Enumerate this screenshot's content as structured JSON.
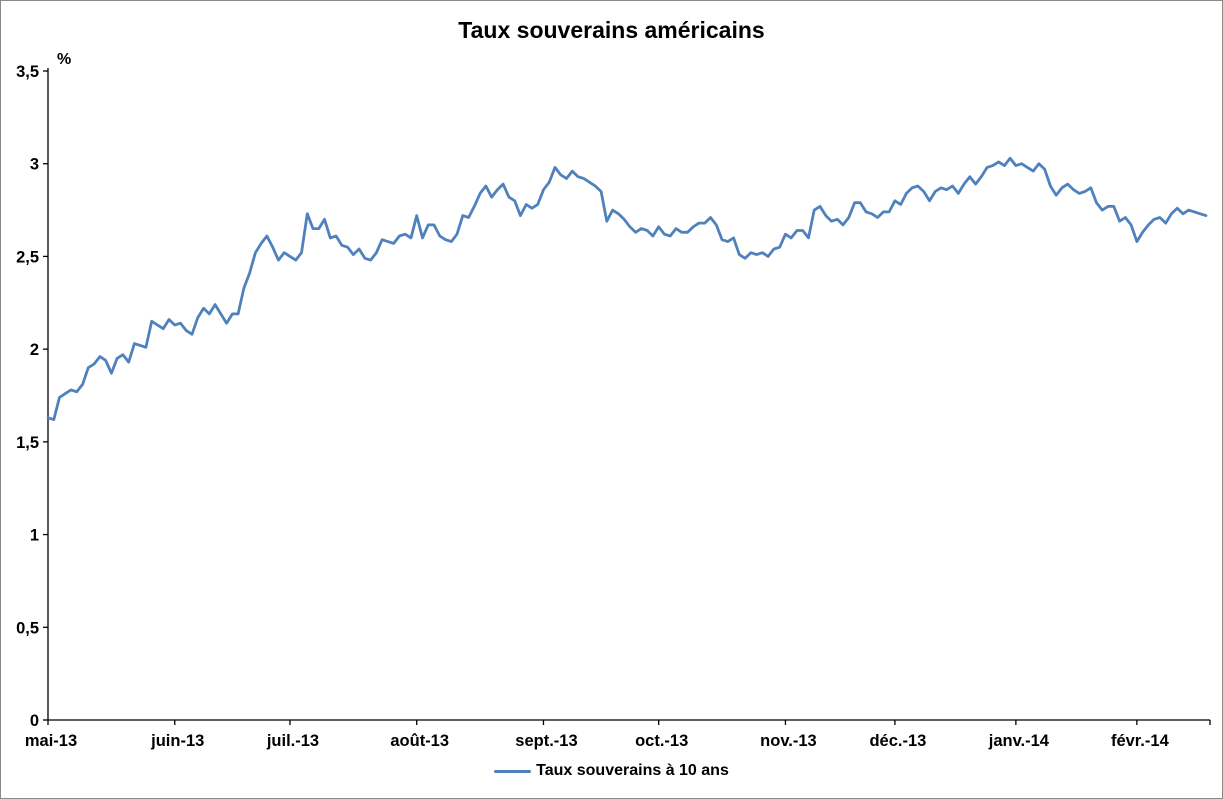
{
  "chart_data": {
    "type": "line",
    "title": "Taux souverains américains",
    "unit": "%",
    "grid": false,
    "legend_position": "bottom",
    "ylim": [
      0,
      3.5
    ],
    "y_ticks": [
      {
        "label": "0",
        "value": 0
      },
      {
        "label": "0,5",
        "value": 0.5
      },
      {
        "label": "1",
        "value": 1
      },
      {
        "label": "1,5",
        "value": 1.5
      },
      {
        "label": "2",
        "value": 2
      },
      {
        "label": "2,5",
        "value": 2.5
      },
      {
        "label": "3",
        "value": 3
      },
      {
        "label": "3,5",
        "value": 3.5
      }
    ],
    "x_ticks": [
      {
        "label": "mai-13",
        "index": 0
      },
      {
        "label": "juin-13",
        "index": 22
      },
      {
        "label": "juil.-13",
        "index": 42
      },
      {
        "label": "août-13",
        "index": 64
      },
      {
        "label": "sept.-13",
        "index": 86
      },
      {
        "label": "oct.-13",
        "index": 106
      },
      {
        "label": "nov.-13",
        "index": 128
      },
      {
        "label": "déc.-13",
        "index": 147
      },
      {
        "label": "janv.-14",
        "index": 168
      },
      {
        "label": "févr.-14",
        "index": 189
      }
    ],
    "series": [
      {
        "name": "Taux souverains à 10 ans",
        "color": "#4F81BD",
        "values": [
          1.63,
          1.62,
          1.74,
          1.76,
          1.78,
          1.77,
          1.81,
          1.9,
          1.92,
          1.96,
          1.94,
          1.87,
          1.95,
          1.97,
          1.93,
          2.03,
          2.02,
          2.01,
          2.15,
          2.13,
          2.11,
          2.16,
          2.13,
          2.14,
          2.1,
          2.08,
          2.17,
          2.22,
          2.19,
          2.24,
          2.19,
          2.14,
          2.19,
          2.19,
          2.33,
          2.41,
          2.52,
          2.57,
          2.61,
          2.55,
          2.48,
          2.52,
          2.5,
          2.48,
          2.52,
          2.73,
          2.65,
          2.65,
          2.7,
          2.6,
          2.61,
          2.56,
          2.55,
          2.51,
          2.54,
          2.49,
          2.48,
          2.52,
          2.59,
          2.58,
          2.57,
          2.61,
          2.62,
          2.6,
          2.72,
          2.6,
          2.67,
          2.67,
          2.61,
          2.59,
          2.58,
          2.62,
          2.72,
          2.71,
          2.77,
          2.84,
          2.88,
          2.82,
          2.86,
          2.89,
          2.82,
          2.8,
          2.72,
          2.78,
          2.76,
          2.78,
          2.86,
          2.9,
          2.98,
          2.94,
          2.92,
          2.96,
          2.93,
          2.92,
          2.9,
          2.88,
          2.85,
          2.69,
          2.75,
          2.73,
          2.7,
          2.66,
          2.63,
          2.65,
          2.64,
          2.61,
          2.66,
          2.62,
          2.61,
          2.65,
          2.63,
          2.63,
          2.66,
          2.68,
          2.68,
          2.71,
          2.67,
          2.59,
          2.58,
          2.6,
          2.51,
          2.49,
          2.52,
          2.51,
          2.52,
          2.5,
          2.54,
          2.55,
          2.62,
          2.6,
          2.64,
          2.64,
          2.6,
          2.75,
          2.77,
          2.72,
          2.69,
          2.7,
          2.67,
          2.71,
          2.79,
          2.79,
          2.74,
          2.73,
          2.71,
          2.74,
          2.74,
          2.8,
          2.78,
          2.84,
          2.87,
          2.88,
          2.85,
          2.8,
          2.85,
          2.87,
          2.86,
          2.88,
          2.84,
          2.89,
          2.93,
          2.89,
          2.93,
          2.98,
          2.99,
          3.01,
          2.99,
          3.03,
          2.99,
          3.0,
          2.98,
          2.96,
          3.0,
          2.97,
          2.88,
          2.83,
          2.87,
          2.89,
          2.86,
          2.84,
          2.85,
          2.87,
          2.79,
          2.75,
          2.77,
          2.77,
          2.69,
          2.71,
          2.67,
          2.58,
          2.63,
          2.67,
          2.7,
          2.71,
          2.68,
          2.73,
          2.76,
          2.73,
          2.75,
          2.74,
          2.73,
          2.72
        ]
      }
    ]
  }
}
